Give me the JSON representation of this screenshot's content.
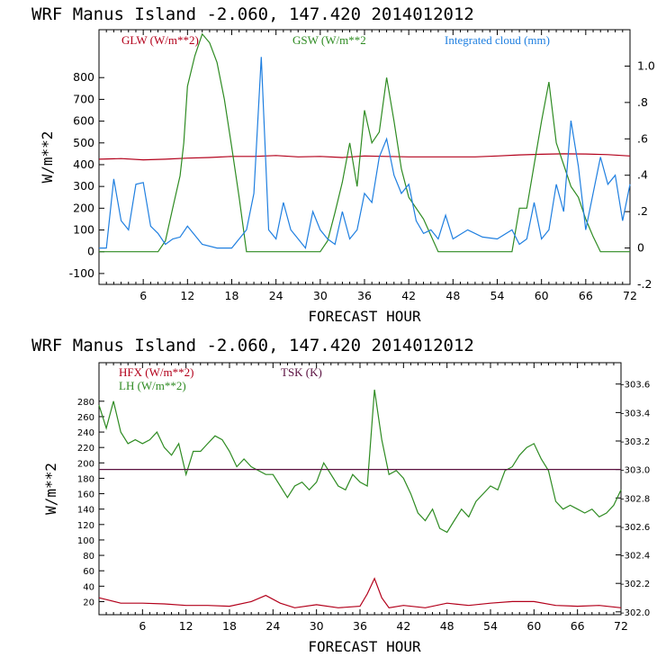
{
  "chart_data": [
    {
      "type": "line",
      "model": "WRF",
      "station": "Manus Island",
      "coords": "-2.060, 147.420",
      "init_time": "2014012012",
      "xlabel": "FORECAST HOUR",
      "ylabel": "W/m**2",
      "xlim": [
        0,
        72
      ],
      "ylim": [
        -150,
        1020
      ],
      "x_ticks": [
        6,
        12,
        18,
        24,
        30,
        36,
        42,
        48,
        54,
        60,
        66,
        72
      ],
      "y_ticks": [
        -100,
        0,
        100,
        200,
        300,
        400,
        500,
        600,
        700,
        800
      ],
      "y2label": "Integrated cloud (mm)",
      "y2lim": [
        -0.2,
        1.2
      ],
      "y2_ticks": [
        "-.2",
        "0",
        ".2",
        ".4",
        ".6",
        ".8",
        "1.0"
      ],
      "y2_tick_values": [
        -0.2,
        0,
        0.2,
        0.4,
        0.6,
        0.8,
        1.0
      ],
      "series": [
        {
          "name": "GLW (W/m**2)",
          "color": "#b3001b",
          "axis": "left",
          "x": [
            0,
            3,
            6,
            9,
            12,
            15,
            18,
            21,
            24,
            27,
            30,
            33,
            36,
            39,
            42,
            45,
            48,
            51,
            54,
            57,
            60,
            63,
            66,
            69,
            72
          ],
          "values": [
            425,
            428,
            422,
            425,
            430,
            433,
            438,
            438,
            442,
            436,
            438,
            433,
            440,
            438,
            436,
            436,
            436,
            436,
            440,
            445,
            448,
            450,
            449,
            446,
            440
          ]
        },
        {
          "name": "GSW (W/m**2",
          "color": "#2e8b22",
          "axis": "left",
          "x": [
            0,
            6,
            8,
            9,
            10,
            11,
            11.5,
            12,
            13,
            14,
            15,
            16,
            17,
            18,
            19,
            20,
            30,
            31,
            32,
            33,
            34,
            35,
            36,
            37,
            38,
            39,
            40,
            41,
            42,
            44,
            46,
            54,
            56,
            57,
            58,
            59,
            60,
            61,
            62,
            63,
            64,
            65,
            66,
            67,
            68,
            72
          ],
          "values": [
            0,
            0,
            0,
            50,
            200,
            350,
            500,
            760,
            900,
            1000,
            960,
            870,
            700,
            480,
            250,
            0,
            0,
            50,
            180,
            320,
            500,
            300,
            650,
            500,
            550,
            800,
            600,
            380,
            250,
            150,
            0,
            0,
            0,
            200,
            200,
            400,
            600,
            780,
            500,
            400,
            300,
            250,
            150,
            70,
            0,
            0
          ]
        },
        {
          "name": "Integrated cloud (mm)",
          "color": "#1f7fe0",
          "axis": "right",
          "x": [
            0,
            1,
            2,
            3,
            4,
            5,
            6,
            7,
            8,
            9,
            10,
            11,
            12,
            14,
            16,
            18,
            20,
            21,
            22,
            23,
            24,
            25,
            26,
            27,
            28,
            29,
            30,
            31,
            32,
            33,
            34,
            35,
            36,
            37,
            38,
            39,
            40,
            41,
            42,
            43,
            44,
            45,
            46,
            47,
            48,
            50,
            52,
            54,
            56,
            57,
            58,
            59,
            60,
            61,
            62,
            63,
            64,
            65,
            66,
            67,
            68,
            69,
            70,
            71,
            72
          ],
          "values": [
            0,
            0,
            0.38,
            0.15,
            0.1,
            0.35,
            0.36,
            0.12,
            0.08,
            0.02,
            0.05,
            0.06,
            0.12,
            0.02,
            0,
            0,
            0.1,
            0.3,
            1.05,
            0.1,
            0.05,
            0.25,
            0.1,
            0.05,
            0,
            0.2,
            0.1,
            0.05,
            0.02,
            0.2,
            0.05,
            0.1,
            0.3,
            0.25,
            0.5,
            0.6,
            0.4,
            0.3,
            0.35,
            0.15,
            0.08,
            0.1,
            0.05,
            0.18,
            0.05,
            0.1,
            0.06,
            0.05,
            0.1,
            0.02,
            0.05,
            0.25,
            0.05,
            0.1,
            0.35,
            0.2,
            0.7,
            0.45,
            0.1,
            0.3,
            0.5,
            0.35,
            0.4,
            0.15,
            0.35
          ]
        }
      ]
    },
    {
      "type": "line",
      "model": "WRF",
      "station": "Manus Island",
      "coords": "-2.060, 147.420",
      "init_time": "2014012012",
      "xlabel": "FORECAST HOUR",
      "ylabel": "W/m**2",
      "xlim": [
        0,
        72
      ],
      "ylim": [
        3,
        330
      ],
      "x_ticks": [
        6,
        12,
        18,
        24,
        30,
        36,
        42,
        48,
        54,
        60,
        66,
        72
      ],
      "y_ticks": [
        20,
        40,
        60,
        80,
        100,
        120,
        140,
        160,
        180,
        200,
        220,
        240,
        260,
        280
      ],
      "y2label": "TSK (K)",
      "y2lim": [
        301.98,
        303.75
      ],
      "y2_ticks": [
        "-302.0",
        "-302.2",
        "-302.4",
        "-302.6",
        "-302.8",
        "-303.0",
        "-303.2",
        "-303.4",
        "-303.6"
      ],
      "y2_tick_values": [
        302.0,
        302.2,
        302.4,
        302.6,
        302.8,
        303.0,
        303.2,
        303.4,
        303.6
      ],
      "series": [
        {
          "name": "HFX (W/m**2)",
          "color": "#b3001b",
          "axis": "left",
          "x": [
            0,
            3,
            6,
            9,
            12,
            15,
            18,
            21,
            23,
            25,
            27,
            30,
            33,
            36,
            37,
            38,
            39,
            40,
            42,
            45,
            48,
            51,
            54,
            57,
            60,
            63,
            66,
            69,
            72
          ],
          "values": [
            25,
            18,
            18,
            17,
            15,
            15,
            14,
            20,
            28,
            18,
            12,
            16,
            12,
            14,
            30,
            50,
            25,
            12,
            15,
            12,
            18,
            15,
            18,
            20,
            20,
            15,
            14,
            15,
            12
          ]
        },
        {
          "name": "LH (W/m**2)",
          "color": "#2e8b22",
          "axis": "left",
          "x": [
            0,
            1,
            2,
            3,
            4,
            5,
            6,
            7,
            8,
            9,
            10,
            11,
            12,
            13,
            14,
            15,
            16,
            17,
            18,
            19,
            20,
            21,
            22,
            23,
            24,
            25,
            26,
            27,
            28,
            29,
            30,
            31,
            32,
            33,
            34,
            35,
            36,
            37,
            38,
            39,
            40,
            41,
            42,
            43,
            44,
            45,
            46,
            47,
            48,
            49,
            50,
            51,
            52,
            53,
            54,
            55,
            56,
            57,
            58,
            59,
            60,
            61,
            62,
            63,
            64,
            65,
            66,
            67,
            68,
            69,
            70,
            71,
            72
          ],
          "values": [
            275,
            245,
            280,
            240,
            225,
            230,
            225,
            230,
            240,
            220,
            210,
            225,
            185,
            215,
            215,
            225,
            235,
            230,
            215,
            195,
            205,
            195,
            190,
            185,
            185,
            170,
            155,
            170,
            175,
            165,
            175,
            200,
            185,
            170,
            165,
            185,
            175,
            170,
            295,
            230,
            185,
            190,
            180,
            160,
            135,
            125,
            140,
            115,
            110,
            125,
            140,
            130,
            150,
            160,
            170,
            165,
            190,
            195,
            210,
            220,
            225,
            205,
            190,
            150,
            140,
            145,
            140,
            135,
            140,
            130,
            135,
            145,
            165
          ]
        },
        {
          "name": "TSK (K)",
          "color": "#5a1040",
          "axis": "right",
          "x": [
            0,
            72
          ],
          "values": [
            303.0,
            303.0
          ]
        }
      ]
    }
  ]
}
